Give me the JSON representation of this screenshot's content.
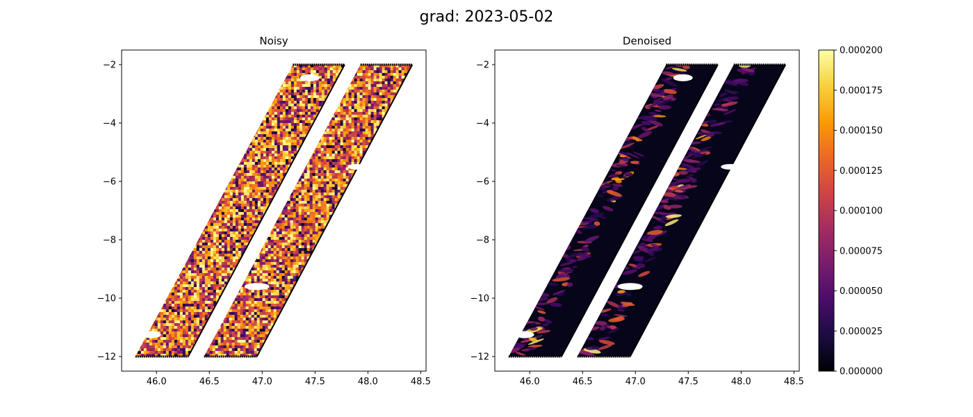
{
  "figure": {
    "title": "grad: 2023-05-02"
  },
  "colormap": {
    "name": "inferno",
    "stops": [
      "#000004",
      "#1b0c41",
      "#4a0c6b",
      "#781c6d",
      "#a52c60",
      "#cf4446",
      "#ed6925",
      "#fb9b06",
      "#f7d13d",
      "#fcffa4"
    ]
  },
  "chart_data": [
    {
      "type": "heatmap",
      "title": "Noisy",
      "xlabel": "",
      "ylabel": "",
      "xlim": [
        45.67,
        48.55
      ],
      "ylim": [
        -12.5,
        -1.5
      ],
      "xticks": [
        46.0,
        46.5,
        47.0,
        47.5,
        48.0,
        48.5
      ],
      "xtick_labels": [
        "46.0",
        "46.5",
        "47.0",
        "47.5",
        "48.0",
        "48.5"
      ],
      "yticks": [
        -2,
        -4,
        -6,
        -8,
        -10,
        -12
      ],
      "ytick_labels": [
        "−2",
        "−4",
        "−6",
        "−8",
        "−10",
        "−12"
      ],
      "swaths": [
        {
          "corners_lonlat": [
            [
              45.8,
              -12.0
            ],
            [
              46.3,
              -12.0
            ],
            [
              47.78,
              -2.0
            ],
            [
              47.29,
              -2.0
            ]
          ]
        },
        {
          "corners_lonlat": [
            [
              46.45,
              -12.0
            ],
            [
              46.95,
              -12.0
            ],
            [
              48.42,
              -2.0
            ],
            [
              47.93,
              -2.0
            ]
          ]
        }
      ],
      "value_range": [
        0.0,
        0.0002
      ],
      "value_summary": "high-amplitude noise, mostly 0.00005–0.0002"
    },
    {
      "type": "heatmap",
      "title": "Denoised",
      "xlabel": "",
      "ylabel": "",
      "xlim": [
        45.67,
        48.55
      ],
      "ylim": [
        -12.5,
        -1.5
      ],
      "xticks": [
        46.0,
        46.5,
        47.0,
        47.5,
        48.0,
        48.5
      ],
      "xtick_labels": [
        "46.0",
        "46.5",
        "47.0",
        "47.5",
        "48.0",
        "48.5"
      ],
      "yticks": [
        -2,
        -4,
        -6,
        -8,
        -10,
        -12
      ],
      "ytick_labels": [
        "−2",
        "−4",
        "−6",
        "−8",
        "−10",
        "−12"
      ],
      "swaths": [
        {
          "corners_lonlat": [
            [
              45.8,
              -12.0
            ],
            [
              46.3,
              -12.0
            ],
            [
              47.78,
              -2.0
            ],
            [
              47.29,
              -2.0
            ]
          ]
        },
        {
          "corners_lonlat": [
            [
              46.45,
              -12.0
            ],
            [
              46.95,
              -12.0
            ],
            [
              48.42,
              -2.0
            ],
            [
              47.93,
              -2.0
            ]
          ]
        }
      ],
      "value_range": [
        0.0,
        0.0002
      ],
      "value_summary": "mostly 0–0.00005 with sparse filaments up to ~0.0002"
    },
    {
      "type": "colorbar",
      "range": [
        0.0,
        0.0002
      ],
      "ticks": [
        0.0,
        2.5e-05,
        5e-05,
        7.5e-05,
        0.0001,
        0.000125,
        0.00015,
        0.000175,
        0.0002
      ],
      "tick_labels": [
        "0.000000",
        "0.000025",
        "0.000050",
        "0.000075",
        "0.000100",
        "0.000125",
        "0.000150",
        "0.000175",
        "0.000200"
      ]
    }
  ]
}
